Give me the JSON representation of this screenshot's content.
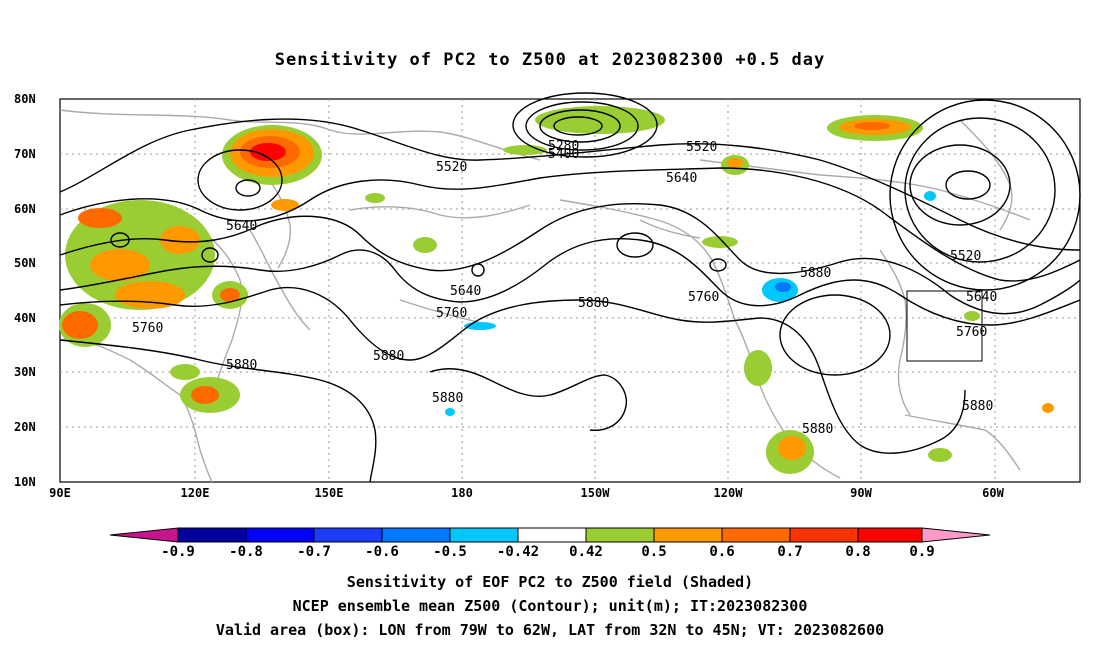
{
  "title": "Sensitivity of PC2 to Z500 at 2023082300 +0.5 day",
  "lat_labels": [
    "80N",
    "70N",
    "60N",
    "50N",
    "40N",
    "30N",
    "20N",
    "10N"
  ],
  "lon_labels": [
    "90E",
    "120E",
    "150E",
    "180",
    "150W",
    "120W",
    "90W",
    "60W"
  ],
  "contour_labels": [
    "5280",
    "5400",
    "5520",
    "5520",
    "5520",
    "5640",
    "5640",
    "5640",
    "5640",
    "5760",
    "5760",
    "5760",
    "5760",
    "5880",
    "5880",
    "5880",
    "5880",
    "5880",
    "5880"
  ],
  "colorbar": {
    "labels": [
      "-0.9",
      "-0.8",
      "-0.7",
      "-0.6",
      "-0.5",
      "-0.42",
      "0.42",
      "0.5",
      "0.6",
      "0.7",
      "0.8",
      "0.9"
    ],
    "colors": [
      "#0000a0",
      "#0000ff",
      "#1e3cff",
      "#0078ff",
      "#00c8ff",
      "#ffffff",
      "#9acd32",
      "#ff9900",
      "#ff6a00",
      "#ff3300",
      "#ff0000"
    ],
    "low_extend_color": "#c8148c",
    "high_extend_color": "#ff9ac8"
  },
  "captions": [
    "Sensitivity of EOF PC2 to Z500 field (Shaded)",
    "NCEP ensemble mean Z500 (Contour); unit(m); IT:2023082300",
    "Valid area (box): LON from 79W to 62W, LAT from 32N to 45N; VT: 2023082600"
  ]
}
